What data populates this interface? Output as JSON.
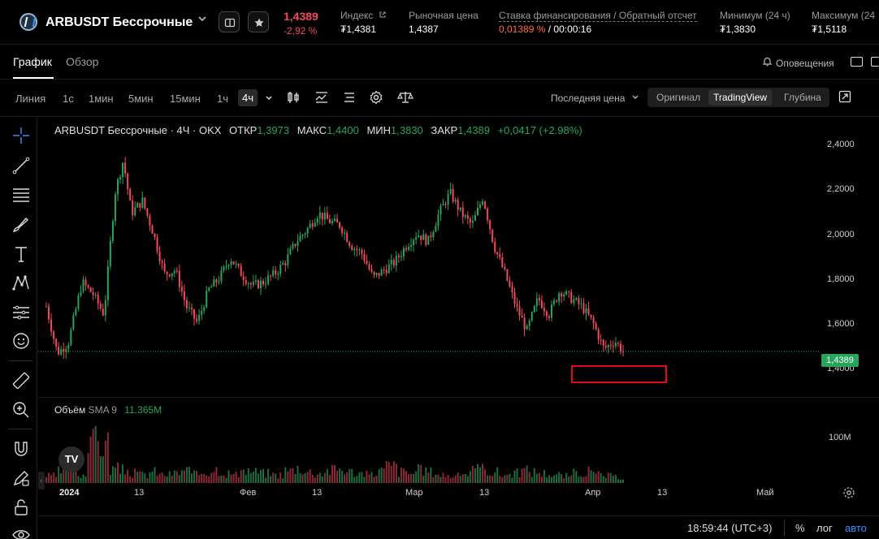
{
  "header": {
    "pair_title": "ARBUSDT Бессрочные",
    "last_price": "1,4389",
    "change_pct": "-2,92 %",
    "stats": [
      {
        "label": "Индекс",
        "value": "₮1,4381"
      },
      {
        "label": "Рыночная цена",
        "value": "1,4387"
      },
      {
        "label": "Ставка финансирования / Обратный отсчет",
        "value_rate": "0,01389 %",
        "value_sep": " / ",
        "value_time": "00:00:16"
      },
      {
        "label": "Минимум (24 ч)",
        "value": "₮1,3830"
      },
      {
        "label": "Максимум (24",
        "value": "₮1,5118"
      }
    ]
  },
  "tabs": [
    {
      "label": "График",
      "active": true
    },
    {
      "label": "Обзор",
      "active": false
    }
  ],
  "alerts_label": "Оповещения",
  "toolbar": {
    "chart_type": "Линия",
    "timeframes": [
      "1с",
      "1мин",
      "5мин",
      "15мин",
      "1ч",
      "4ч"
    ],
    "active_timeframe": "4ч",
    "price_source": "Последняя цена",
    "views": [
      "Оригинал",
      "TradingView",
      "Глубина"
    ],
    "active_view": "TradingView"
  },
  "legend": {
    "symbol": "ARBUSDT Бессрочные · 4Ч · OKX",
    "open_label": "ОТКР",
    "open": "1,3973",
    "high_label": "МАКС",
    "high": "1,4400",
    "low_label": "МИН",
    "low": "1,3830",
    "close_label": "ЗАКР",
    "close": "1,4389",
    "change": "+0,0417 (+2.98%)"
  },
  "volume_legend": {
    "title": "Объём",
    "study": "SMA 9",
    "value": "11.365M"
  },
  "price_tag": "1,4389",
  "footer": {
    "time": "18:59:44 (UTC+3)",
    "percent": "%",
    "log": "лог",
    "auto": "авто"
  },
  "tv_logo": "TV",
  "colors": {
    "up": "#26a65b",
    "down": "#f2495e",
    "accent": "#3d8bfd",
    "highlight": "#e50914"
  },
  "chart_data": {
    "type": "candlestick",
    "exchange": "OKX",
    "interval": "4Ч",
    "y_ticks": [
      "2,4000",
      "2,2000",
      "2,0000",
      "1,8000",
      "1,6000",
      "1,4000"
    ],
    "y_range": [
      1.35,
      2.45
    ],
    "volume_ticks": [
      "100M"
    ],
    "x_ticks": [
      "2024",
      "13",
      "Фев",
      "13",
      "Мар",
      "13",
      "Апр",
      "13",
      "Май"
    ],
    "close_path": [
      [
        0,
        1.66
      ],
      [
        0.8,
        1.43
      ],
      [
        1.6,
        1.48
      ],
      [
        2.6,
        1.78
      ],
      [
        3.4,
        1.72
      ],
      [
        4.2,
        1.62
      ],
      [
        5.0,
        2.22
      ],
      [
        5.6,
        2.38
      ],
      [
        6.2,
        2.12
      ],
      [
        7.0,
        2.18
      ],
      [
        7.8,
        2.02
      ],
      [
        8.6,
        1.82
      ],
      [
        9.4,
        1.84
      ],
      [
        10.2,
        1.66
      ],
      [
        11.0,
        1.58
      ],
      [
        11.8,
        1.74
      ],
      [
        12.6,
        1.8
      ],
      [
        13.4,
        1.9
      ],
      [
        14.2,
        1.82
      ],
      [
        15.0,
        1.76
      ],
      [
        15.8,
        1.78
      ],
      [
        16.6,
        1.82
      ],
      [
        17.4,
        1.88
      ],
      [
        18.2,
        1.98
      ],
      [
        19.0,
        2.04
      ],
      [
        19.8,
        2.12
      ],
      [
        20.6,
        2.08
      ],
      [
        21.4,
        2.06
      ],
      [
        22.2,
        1.96
      ],
      [
        23.0,
        1.92
      ],
      [
        23.8,
        1.8
      ],
      [
        24.6,
        1.84
      ],
      [
        25.4,
        1.88
      ],
      [
        26.2,
        1.96
      ],
      [
        27.0,
        2.02
      ],
      [
        27.8,
        1.98
      ],
      [
        28.6,
        2.12
      ],
      [
        29.4,
        2.22
      ],
      [
        30.2,
        2.12
      ],
      [
        31.0,
        2.06
      ],
      [
        31.8,
        2.2
      ],
      [
        32.6,
        1.96
      ],
      [
        33.4,
        1.82
      ],
      [
        34.2,
        1.66
      ],
      [
        35.0,
        1.54
      ],
      [
        35.8,
        1.7
      ],
      [
        36.6,
        1.62
      ],
      [
        37.4,
        1.74
      ],
      [
        38.2,
        1.7
      ],
      [
        39.0,
        1.66
      ],
      [
        39.8,
        1.58
      ],
      [
        40.6,
        1.45
      ],
      [
        41.4,
        1.49
      ],
      [
        42.0,
        1.44
      ]
    ],
    "volume": [
      5,
      8,
      12,
      6,
      40,
      28,
      10,
      9,
      7,
      6,
      8,
      6,
      7,
      9,
      6,
      8,
      10,
      7,
      6,
      9,
      8,
      7,
      6,
      9,
      11,
      8,
      7,
      9,
      10,
      8,
      7,
      6,
      9,
      12,
      8,
      7,
      9,
      8,
      6,
      5,
      7,
      9,
      10,
      8,
      6,
      7,
      9,
      8,
      7,
      6,
      5,
      7,
      8,
      6,
      5,
      4
    ]
  }
}
